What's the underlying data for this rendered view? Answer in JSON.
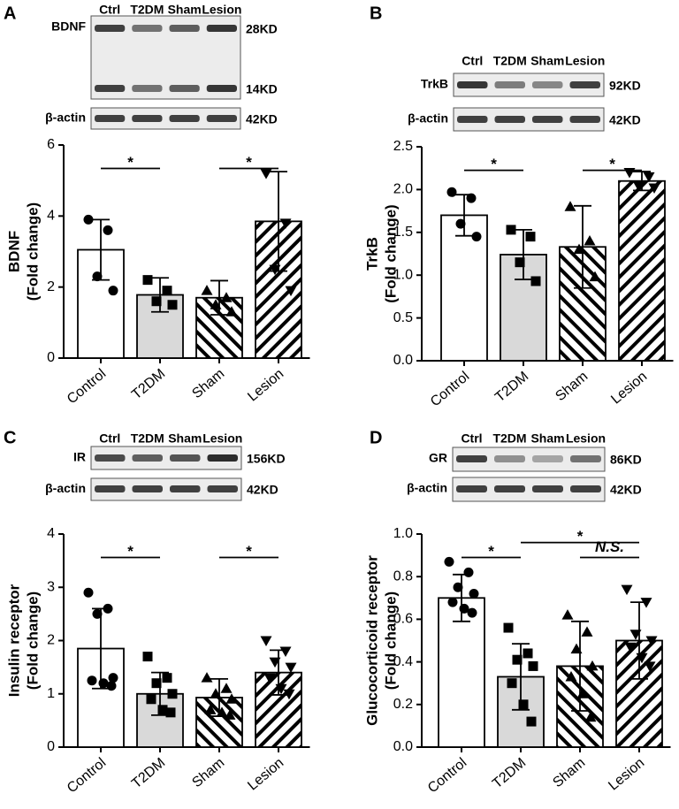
{
  "chart_data": [
    {
      "type": "bar",
      "panel": "A",
      "blot": {
        "lanes": [
          "Ctrl",
          "T2DM",
          "Sham",
          "Lesion"
        ],
        "rows": [
          {
            "label": "BDNF",
            "sizes": [
              "28KD",
              "14KD"
            ]
          },
          {
            "label": "β-actin",
            "sizes": [
              "42KD"
            ]
          }
        ]
      },
      "y_label": [
        "BDNF",
        "(Fold change)"
      ],
      "categories": [
        "Control",
        "T2DM",
        "Sham",
        "Lesion"
      ],
      "values": [
        3.05,
        1.78,
        1.7,
        3.85
      ],
      "errors": [
        0.85,
        0.48,
        0.48,
        1.4
      ],
      "points": [
        [
          3.9,
          3.6,
          2.3,
          1.9
        ],
        [
          2.2,
          1.9,
          1.6,
          1.5
        ],
        [
          1.9,
          1.7,
          1.5,
          1.3
        ],
        [
          5.2,
          3.8,
          2.5,
          1.9
        ]
      ],
      "markers": [
        "circle",
        "square",
        "triangle",
        "triangle-down"
      ],
      "fills": [
        "#ffffff",
        "#d9d9d9",
        "#ffffff",
        "#ffffff"
      ],
      "hatches": [
        null,
        null,
        "\\",
        "/"
      ],
      "ylim": [
        0,
        6
      ],
      "yticks": [
        0,
        2,
        4,
        6
      ],
      "significance": [
        {
          "from": "Control",
          "to": "T2DM",
          "label": "*"
        },
        {
          "from": "Sham",
          "to": "Lesion",
          "label": "*"
        }
      ]
    },
    {
      "type": "bar",
      "panel": "B",
      "blot": {
        "lanes": [
          "Ctrl",
          "T2DM",
          "Sham",
          "Lesion"
        ],
        "rows": [
          {
            "label": "TrkB",
            "sizes": [
              "92KD"
            ]
          },
          {
            "label": "β-actin",
            "sizes": [
              "42KD"
            ]
          }
        ]
      },
      "y_label": [
        "TrkB",
        "(Fold change)"
      ],
      "categories": [
        "Control",
        "T2DM",
        "Sham",
        "Lesion"
      ],
      "values": [
        1.7,
        1.24,
        1.33,
        2.1
      ],
      "errors": [
        0.24,
        0.29,
        0.48,
        0.11
      ],
      "points": [
        [
          1.97,
          1.9,
          1.6,
          1.45
        ],
        [
          1.53,
          1.45,
          1.15,
          0.93
        ],
        [
          1.8,
          1.4,
          1.3,
          0.98
        ],
        [
          2.2,
          2.15,
          2.05,
          2.02
        ]
      ],
      "markers": [
        "circle",
        "square",
        "triangle",
        "triangle-down"
      ],
      "fills": [
        "#ffffff",
        "#d9d9d9",
        "#ffffff",
        "#ffffff"
      ],
      "hatches": [
        null,
        null,
        "\\",
        "/"
      ],
      "ylim": [
        0,
        2.5
      ],
      "yticks": [
        {
          "value": 0,
          "label": "0.0"
        },
        {
          "value": 0.5,
          "label": "0.5"
        },
        {
          "value": 1,
          "label": "1.0"
        },
        {
          "value": 1.5,
          "label": "1.5"
        },
        {
          "value": 2,
          "label": "2.0"
        },
        {
          "value": 2.5,
          "label": "2.5"
        }
      ],
      "significance": [
        {
          "from": "Control",
          "to": "T2DM",
          "label": "*"
        },
        {
          "from": "Sham",
          "to": "Lesion",
          "label": "*"
        }
      ]
    },
    {
      "type": "bar",
      "panel": "C",
      "blot": {
        "lanes": [
          "Ctrl",
          "T2DM",
          "Sham",
          "Lesion"
        ],
        "rows": [
          {
            "label": "IR",
            "sizes": [
              "156KD"
            ]
          },
          {
            "label": "β-actin",
            "sizes": [
              "42KD"
            ]
          }
        ]
      },
      "y_label": [
        "Insulin receptor",
        "(Fold change)"
      ],
      "categories": [
        "Control",
        "T2DM",
        "Sham",
        "Lesion"
      ],
      "values": [
        1.85,
        1.0,
        0.93,
        1.4
      ],
      "errors": [
        0.75,
        0.4,
        0.35,
        0.42
      ],
      "points": [
        [
          2.9,
          2.6,
          2.5,
          1.3,
          1.25,
          1.2,
          1.15
        ],
        [
          1.7,
          1.3,
          1.2,
          1.0,
          0.9,
          0.7,
          0.65
        ],
        [
          1.3,
          1.1,
          1.0,
          0.9,
          0.7,
          0.65,
          0.6
        ],
        [
          2.0,
          1.8,
          1.6,
          1.5,
          1.3,
          1.1,
          1.0
        ]
      ],
      "markers": [
        "circle",
        "square",
        "triangle",
        "triangle-down"
      ],
      "fills": [
        "#ffffff",
        "#d9d9d9",
        "#ffffff",
        "#ffffff"
      ],
      "hatches": [
        null,
        null,
        "\\",
        "/"
      ],
      "ylim": [
        0,
        4
      ],
      "yticks": [
        0,
        1,
        2,
        3,
        4
      ],
      "significance": [
        {
          "from": "Control",
          "to": "T2DM",
          "label": "*"
        },
        {
          "from": "Sham",
          "to": "Lesion",
          "label": "*"
        }
      ]
    },
    {
      "type": "bar",
      "panel": "D",
      "blot": {
        "lanes": [
          "Ctrl",
          "T2DM",
          "Sham",
          "Lesion"
        ],
        "rows": [
          {
            "label": "GR",
            "sizes": [
              "86KD"
            ]
          },
          {
            "label": "β-actin",
            "sizes": [
              "42KD"
            ]
          }
        ]
      },
      "y_label": [
        "Glucocorticoid receptor",
        "(Fold change)"
      ],
      "categories": [
        "Control",
        "T2DM",
        "Sham",
        "Lesion"
      ],
      "values": [
        0.7,
        0.33,
        0.38,
        0.5
      ],
      "errors": [
        0.11,
        0.155,
        0.21,
        0.18
      ],
      "points": [
        [
          0.87,
          0.82,
          0.75,
          0.72,
          0.68,
          0.65,
          0.63
        ],
        [
          0.56,
          0.44,
          0.41,
          0.38,
          0.3,
          0.2,
          0.12
        ],
        [
          0.62,
          0.54,
          0.46,
          0.38,
          0.33,
          0.25,
          0.14
        ],
        [
          0.74,
          0.68,
          0.53,
          0.5,
          0.47,
          0.42,
          0.38
        ]
      ],
      "markers": [
        "circle",
        "square",
        "triangle",
        "triangle-down"
      ],
      "fills": [
        "#ffffff",
        "#d9d9d9",
        "#ffffff",
        "#ffffff"
      ],
      "hatches": [
        null,
        null,
        "\\",
        "/"
      ],
      "ylim": [
        0,
        1
      ],
      "yticks": [
        {
          "value": 0,
          "label": "0.0"
        },
        {
          "value": 0.2,
          "label": "0.2"
        },
        {
          "value": 0.4,
          "label": "0.4"
        },
        {
          "value": 0.6,
          "label": "0.6"
        },
        {
          "value": 0.8,
          "label": "0.8"
        },
        {
          "value": 1,
          "label": "1.0"
        }
      ],
      "significance": [
        {
          "from": "Control",
          "to": "T2DM",
          "label": "*"
        },
        {
          "from": "T2DM",
          "to": "Lesion",
          "label": "*"
        },
        {
          "from": "Sham",
          "to": "Lesion",
          "label": "N.S."
        }
      ]
    }
  ]
}
